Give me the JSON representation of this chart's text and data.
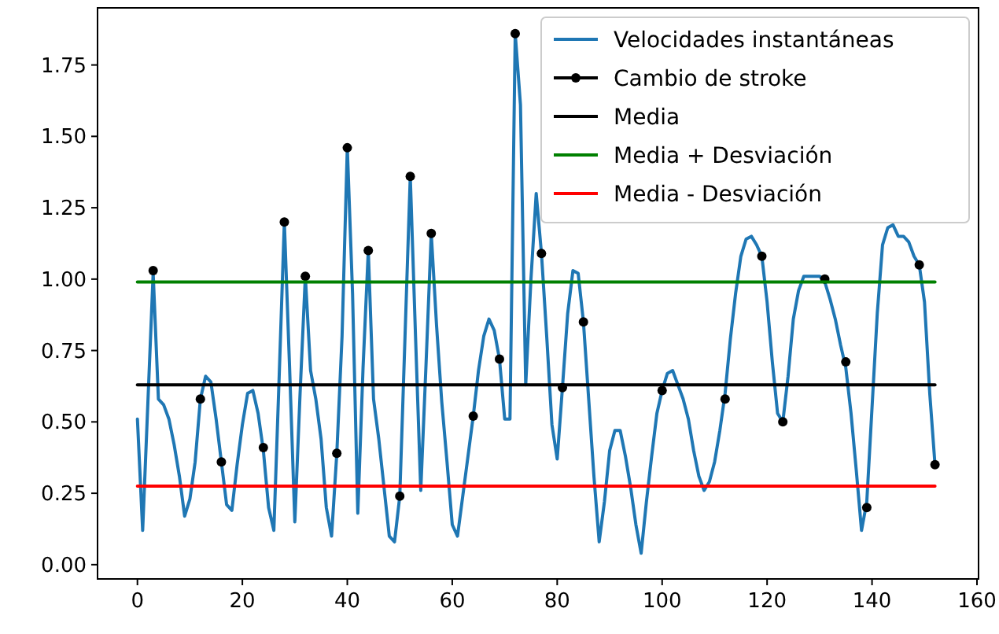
{
  "chart_data": {
    "type": "line",
    "xlim": [
      -7.6,
      160.3
    ],
    "ylim": [
      -0.05,
      1.95
    ],
    "xticks": [
      0,
      20,
      40,
      60,
      80,
      100,
      120,
      140,
      160
    ],
    "yticks": [
      {
        "value": 0,
        "label": "0.00"
      },
      {
        "value": 0.25,
        "label": "0.25"
      },
      {
        "value": 0.5,
        "label": "0.50"
      },
      {
        "value": 0.75,
        "label": "0.75"
      },
      {
        "value": 1,
        "label": "1.00"
      },
      {
        "value": 1.25,
        "label": "1.25"
      },
      {
        "value": 1.5,
        "label": "1.50"
      },
      {
        "value": 1.75,
        "label": "1.75"
      }
    ],
    "legend": "top right",
    "grid": false,
    "x": [
      0,
      1,
      2,
      3,
      4,
      5,
      6,
      7,
      8,
      9,
      10,
      11,
      12,
      13,
      14,
      15,
      16,
      17,
      18,
      19,
      20,
      21,
      22,
      23,
      24,
      25,
      26,
      27,
      28,
      29,
      30,
      31,
      32,
      33,
      34,
      35,
      36,
      37,
      38,
      39,
      40,
      41,
      42,
      43,
      44,
      45,
      46,
      47,
      48,
      49,
      50,
      51,
      52,
      53,
      54,
      55,
      56,
      57,
      58,
      59,
      60,
      61,
      62,
      63,
      64,
      65,
      66,
      67,
      68,
      69,
      70,
      71,
      72,
      73,
      74,
      75,
      76,
      77,
      78,
      79,
      80,
      81,
      82,
      83,
      84,
      85,
      86,
      87,
      88,
      89,
      90,
      91,
      92,
      93,
      94,
      95,
      96,
      97,
      98,
      99,
      100,
      101,
      102,
      103,
      104,
      105,
      106,
      107,
      108,
      109,
      110,
      111,
      112,
      113,
      114,
      115,
      116,
      117,
      118,
      119,
      120,
      121,
      122,
      123,
      124,
      125,
      126,
      127,
      128,
      129,
      130,
      131,
      132,
      133,
      134,
      135,
      136,
      137,
      138,
      139,
      140,
      141,
      142,
      143,
      144,
      145,
      146,
      147,
      148,
      149,
      150,
      151,
      152
    ],
    "series": [
      {
        "name": "Velocidades instantáneas",
        "color": "#1f77b4",
        "values": [
          0.51,
          0.12,
          0.57,
          1.02,
          0.58,
          0.56,
          0.51,
          0.42,
          0.31,
          0.17,
          0.23,
          0.36,
          0.58,
          0.66,
          0.64,
          0.51,
          0.36,
          0.21,
          0.19,
          0.35,
          0.49,
          0.6,
          0.61,
          0.53,
          0.4,
          0.2,
          0.12,
          0.65,
          1.2,
          0.69,
          0.15,
          0.6,
          1.01,
          0.68,
          0.58,
          0.44,
          0.2,
          0.1,
          0.39,
          0.8,
          1.46,
          0.95,
          0.18,
          0.69,
          1.1,
          0.58,
          0.44,
          0.27,
          0.1,
          0.08,
          0.24,
          0.8,
          1.36,
          0.8,
          0.26,
          0.7,
          1.16,
          0.84,
          0.57,
          0.36,
          0.14,
          0.1,
          0.24,
          0.38,
          0.52,
          0.68,
          0.8,
          0.86,
          0.82,
          0.72,
          0.51,
          0.51,
          1.86,
          1.61,
          0.63,
          1.0,
          1.3,
          1.09,
          0.8,
          0.49,
          0.37,
          0.62,
          0.88,
          1.03,
          1.02,
          0.85,
          0.58,
          0.31,
          0.08,
          0.22,
          0.4,
          0.47,
          0.47,
          0.38,
          0.27,
          0.14,
          0.04,
          0.22,
          0.38,
          0.53,
          0.61,
          0.67,
          0.68,
          0.63,
          0.58,
          0.51,
          0.4,
          0.31,
          0.26,
          0.29,
          0.36,
          0.47,
          0.6,
          0.79,
          0.95,
          1.08,
          1.14,
          1.15,
          1.12,
          1.08,
          0.92,
          0.71,
          0.53,
          0.5,
          0.66,
          0.86,
          0.96,
          1.01,
          1.01,
          1.01,
          1.01,
          0.99,
          0.93,
          0.86,
          0.77,
          0.69,
          0.53,
          0.33,
          0.12,
          0.22,
          0.55,
          0.88,
          1.12,
          1.18,
          1.19,
          1.15,
          1.15,
          1.13,
          1.08,
          1.05,
          0.92,
          0.6,
          0.35
        ]
      },
      {
        "name": "Cambio de stroke",
        "type": "scatter",
        "marker": "circle",
        "color": "#000000",
        "x": [
          3,
          12,
          16,
          24,
          28,
          32,
          38,
          40,
          44,
          50,
          52,
          56,
          64,
          69,
          72,
          77,
          81,
          85,
          100,
          112,
          119,
          123,
          131,
          135,
          139,
          149,
          152
        ],
        "values": [
          1.03,
          0.58,
          0.36,
          0.41,
          1.2,
          1.01,
          0.39,
          1.46,
          1.1,
          0.24,
          1.36,
          1.16,
          0.52,
          0.72,
          1.86,
          1.09,
          0.62,
          0.85,
          0.61,
          0.58,
          1.08,
          0.5,
          1.0,
          0.71,
          0.2,
          1.05,
          0.35
        ]
      },
      {
        "name": "Media",
        "color": "#000000",
        "x": [
          0,
          152
        ],
        "values": [
          0.63,
          0.63
        ]
      },
      {
        "name": "Media + Desviación",
        "color": "#008000",
        "x": [
          0,
          152
        ],
        "values": [
          0.99,
          0.99
        ]
      },
      {
        "name": "Media - Desviación",
        "color": "#ff0000",
        "x": [
          0,
          152
        ],
        "values": [
          0.275,
          0.275
        ]
      }
    ]
  }
}
